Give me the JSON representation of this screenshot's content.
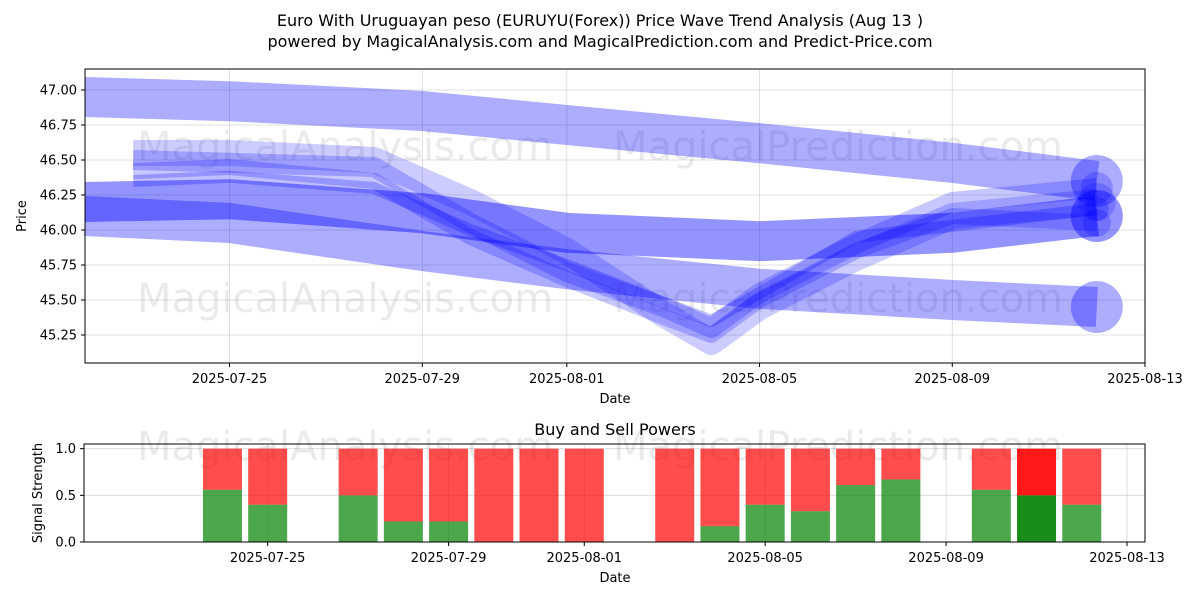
{
  "header": {
    "title_line1": "Euro With Uruguayan peso (EURUYU(Forex)) Price Wave Trend Analysis (Aug 13 )",
    "title_line2": "powered by MagicalAnalysis.com and MagicalPrediction.com and Predict-Price.com"
  },
  "watermarks": [
    "MagicalAnalysis.com",
    "MagicalPrediction.com"
  ],
  "colors": {
    "wave": "#0000ff",
    "buy": "#008000",
    "sell": "#ff0000",
    "grid": "#b0b0b0"
  },
  "chart_data": [
    {
      "type": "area",
      "title": "",
      "xlabel": "Date",
      "ylabel": "Price",
      "x_ticks": [
        "2025-07-25",
        "2025-07-29",
        "2025-08-01",
        "2025-08-05",
        "2025-08-09",
        "2025-08-13"
      ],
      "y_ticks": [
        "45.25",
        "45.50",
        "45.75",
        "46.00",
        "46.25",
        "46.50",
        "46.75",
        "47.00"
      ],
      "xlim": [
        "2025-07-22",
        "2025-08-13"
      ],
      "ylim": [
        45.05,
        47.15
      ],
      "grid": true,
      "series": [
        {
          "x": [
            "2025-07-22",
            "2025-07-25",
            "2025-07-29",
            "2025-08-01",
            "2025-08-05",
            "2025-08-09",
            "2025-08-12"
          ],
          "y": [
            46.95,
            46.92,
            46.85,
            46.75,
            46.62,
            46.48,
            46.35
          ]
        },
        {
          "x": [
            "2025-07-22",
            "2025-07-25",
            "2025-07-29",
            "2025-08-01",
            "2025-08-05",
            "2025-08-09",
            "2025-08-12"
          ],
          "y": [
            46.1,
            46.05,
            45.85,
            45.72,
            45.58,
            45.5,
            45.45
          ]
        },
        {
          "x": [
            "2025-07-22",
            "2025-07-25",
            "2025-07-29",
            "2025-08-01",
            "2025-08-05",
            "2025-08-09",
            "2025-08-12"
          ],
          "y": [
            46.2,
            46.22,
            46.12,
            45.98,
            45.92,
            45.98,
            46.1
          ]
        },
        {
          "x": [
            "2025-07-23",
            "2025-07-25",
            "2025-07-28",
            "2025-07-30",
            "2025-08-01",
            "2025-08-03",
            "2025-08-04",
            "2025-08-05",
            "2025-08-07",
            "2025-08-09",
            "2025-08-12"
          ],
          "y": [
            46.55,
            46.55,
            46.5,
            46.2,
            45.85,
            45.4,
            45.2,
            45.45,
            45.8,
            46.1,
            46.2
          ]
        },
        {
          "x": [
            "2025-07-23",
            "2025-07-25",
            "2025-07-28",
            "2025-07-30",
            "2025-08-01",
            "2025-08-03",
            "2025-08-04",
            "2025-08-05",
            "2025-08-07",
            "2025-08-09",
            "2025-08-12"
          ],
          "y": [
            46.5,
            46.48,
            46.45,
            46.05,
            45.7,
            45.45,
            45.3,
            45.55,
            45.9,
            46.2,
            46.3
          ]
        },
        {
          "x": [
            "2025-07-23",
            "2025-07-25",
            "2025-07-28",
            "2025-07-30",
            "2025-08-01",
            "2025-08-03",
            "2025-08-04",
            "2025-08-05",
            "2025-08-07",
            "2025-08-09",
            "2025-08-12"
          ],
          "y": [
            46.42,
            46.45,
            46.35,
            45.95,
            45.65,
            45.38,
            45.25,
            45.5,
            45.85,
            46.1,
            46.05
          ]
        },
        {
          "x": [
            "2025-07-23",
            "2025-07-25",
            "2025-07-28",
            "2025-07-30",
            "2025-08-01",
            "2025-08-04",
            "2025-08-07",
            "2025-08-12"
          ],
          "y": [
            46.35,
            46.38,
            46.3,
            46.0,
            45.75,
            45.35,
            45.95,
            46.15
          ]
        }
      ]
    },
    {
      "type": "bar",
      "title": "Buy and Sell Powers",
      "xlabel": "Date",
      "ylabel": "Signal Strength",
      "x_ticks": [
        "2025-07-25",
        "2025-07-29",
        "2025-08-01",
        "2025-08-05",
        "2025-08-09",
        "2025-08-13"
      ],
      "y_ticks": [
        "0.0",
        "0.5",
        "1.0"
      ],
      "ylim": [
        0,
        1.05
      ],
      "grid": true,
      "categories": [
        "2025-07-24",
        "2025-07-25",
        "2025-07-27",
        "2025-07-28",
        "2025-07-29",
        "2025-07-30",
        "2025-07-31",
        "2025-08-01",
        "2025-08-03",
        "2025-08-04",
        "2025-08-05",
        "2025-08-06",
        "2025-08-07",
        "2025-08-08",
        "2025-08-10",
        "2025-08-11",
        "2025-08-12"
      ],
      "series": [
        {
          "name": "Buy",
          "values": [
            0.56,
            0.4,
            0.5,
            0.22,
            0.22,
            0.0,
            0.0,
            0.0,
            0.0,
            0.17,
            0.4,
            0.33,
            0.61,
            0.67,
            0.56,
            0.5,
            0.4
          ]
        },
        {
          "name": "Sell",
          "values": [
            0.44,
            0.6,
            0.5,
            0.78,
            0.78,
            1.0,
            1.0,
            1.0,
            1.0,
            0.83,
            0.6,
            0.67,
            0.39,
            0.33,
            0.44,
            0.5,
            0.6
          ]
        }
      ],
      "highlighted_category": "2025-08-11"
    }
  ]
}
